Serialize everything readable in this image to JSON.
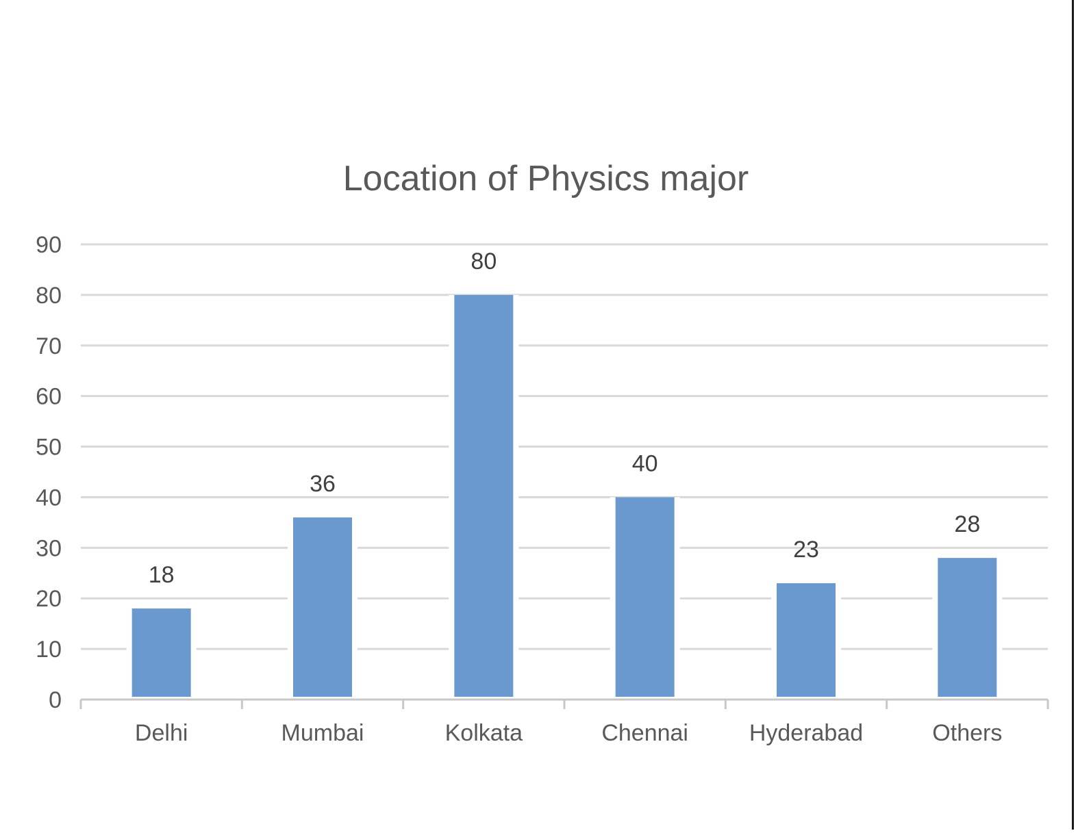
{
  "chart_data": {
    "type": "bar",
    "title": "Location of Physics major",
    "categories": [
      "Delhi",
      "Mumbai",
      "Kolkata",
      "Chennai",
      "Hyderabad",
      "Others"
    ],
    "values": [
      18,
      36,
      80,
      40,
      23,
      28
    ],
    "data_labels": [
      "18",
      "36",
      "80",
      "40",
      "23",
      "28"
    ],
    "y_ticks": [
      "0",
      "10",
      "20",
      "30",
      "40",
      "50",
      "60",
      "70",
      "80",
      "90"
    ],
    "ylim": [
      0,
      90
    ],
    "grid": true,
    "legend": "none",
    "xlabel": "",
    "ylabel": ""
  },
  "colors": {
    "bar": "#6a99cf",
    "grid": "#d9d9d9",
    "axis": "#c8c8c8",
    "text": "#595959",
    "title": "#595959"
  }
}
